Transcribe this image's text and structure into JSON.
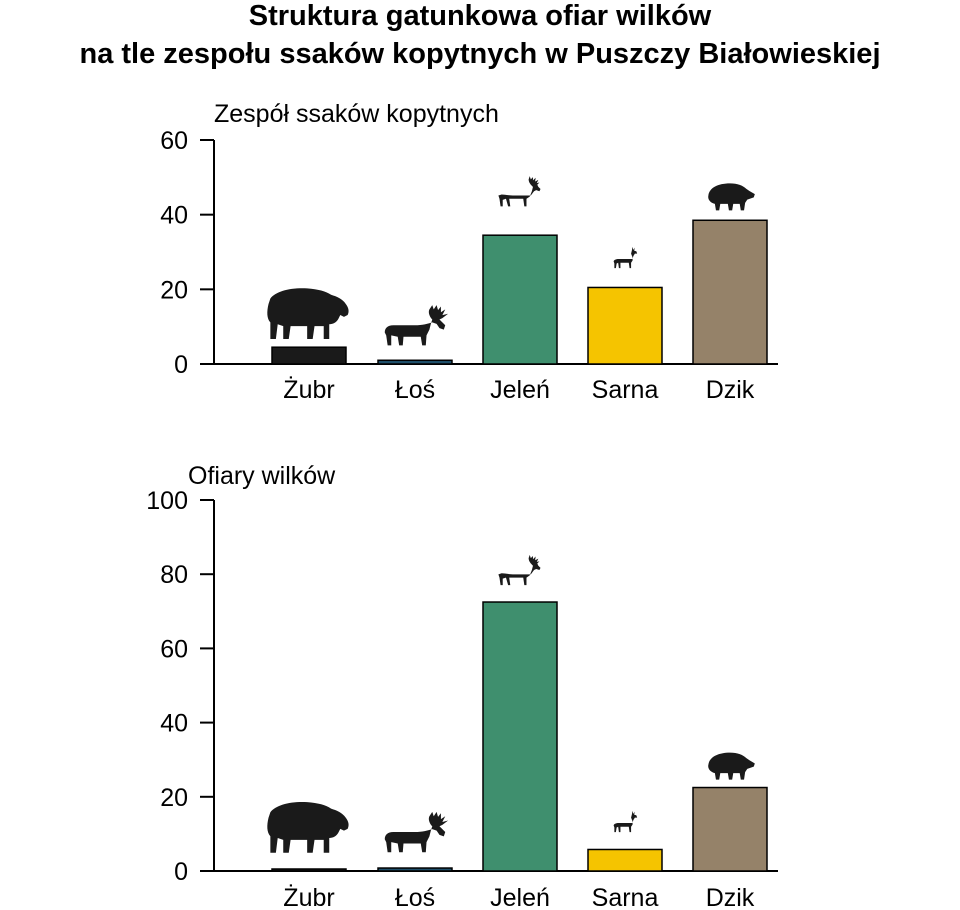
{
  "title_line1": "Struktura gatunkowa ofiar wilków",
  "title_line2": "na tle zespołu ssaków kopytnych w Puszczy Białowieskiej",
  "colors": {
    "zubr": "#1a1a1a",
    "los": "#1f4f6b",
    "jelen": "#3f8f6e",
    "sarna": "#f5c400",
    "dzik": "#958269"
  },
  "chart_data": [
    {
      "type": "bar",
      "title": "Zespół ssaków kopytnych",
      "categories": [
        "Żubr",
        "Łoś",
        "Jeleń",
        "Sarna",
        "Dzik"
      ],
      "values": [
        4.5,
        1,
        34.5,
        20.5,
        38.5
      ],
      "ylim": [
        0,
        60
      ],
      "yticks": [
        0,
        20,
        40,
        60
      ],
      "icons": [
        "bison-icon",
        "moose-icon",
        "red-deer-icon",
        "roe-deer-icon",
        "wild-boar-icon"
      ]
    },
    {
      "type": "bar",
      "title": "Ofiary wilków",
      "categories": [
        "Żubr",
        "Łoś",
        "Jeleń",
        "Sarna",
        "Dzik"
      ],
      "values": [
        0.3,
        0.8,
        72.5,
        5.8,
        22.5
      ],
      "ylim": [
        0,
        100
      ],
      "yticks": [
        0,
        20,
        40,
        60,
        80,
        100
      ],
      "icons": [
        "bison-icon",
        "moose-icon",
        "red-deer-icon",
        "roe-deer-icon",
        "wild-boar-icon"
      ]
    }
  ]
}
